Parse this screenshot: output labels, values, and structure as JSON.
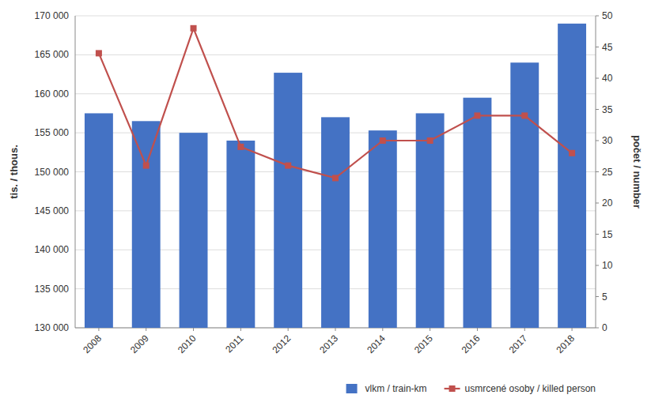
{
  "chart_data": {
    "type": "bar",
    "categories": [
      "2008",
      "2009",
      "2010",
      "2011",
      "2012",
      "2013",
      "2014",
      "2015",
      "2016",
      "2017",
      "2018"
    ],
    "series": [
      {
        "name": "vlkm / train-km",
        "type": "bar",
        "color": "#4472C4",
        "values": [
          157500,
          156500,
          155000,
          154000,
          162700,
          157000,
          155300,
          157500,
          159500,
          164000,
          169000
        ]
      },
      {
        "name": "usmrcené osoby / killed person",
        "type": "line",
        "color": "#C0504D",
        "marker": "square",
        "axis": "y2",
        "values": [
          44,
          26,
          48,
          29,
          26,
          24,
          30,
          30,
          34,
          34,
          28
        ]
      }
    ],
    "ylabel": "tis. / thous.",
    "y2label": "počet / number",
    "ylim": [
      130000,
      170000
    ],
    "yticks": [
      {
        "value": 130000,
        "label": "130 000"
      },
      {
        "value": 135000,
        "label": "135 000"
      },
      {
        "value": 140000,
        "label": "140 000"
      },
      {
        "value": 145000,
        "label": "145 000"
      },
      {
        "value": 150000,
        "label": "150 000"
      },
      {
        "value": 155000,
        "label": "155 000"
      },
      {
        "value": 160000,
        "label": "160 000"
      },
      {
        "value": 165000,
        "label": "165 000"
      },
      {
        "value": 170000,
        "label": "170 000"
      }
    ],
    "y2lim": [
      0,
      50
    ],
    "y2ticks": [
      0,
      5,
      10,
      15,
      20,
      25,
      30,
      35,
      40,
      45,
      50
    ],
    "grid": true,
    "legend": "lower right"
  }
}
